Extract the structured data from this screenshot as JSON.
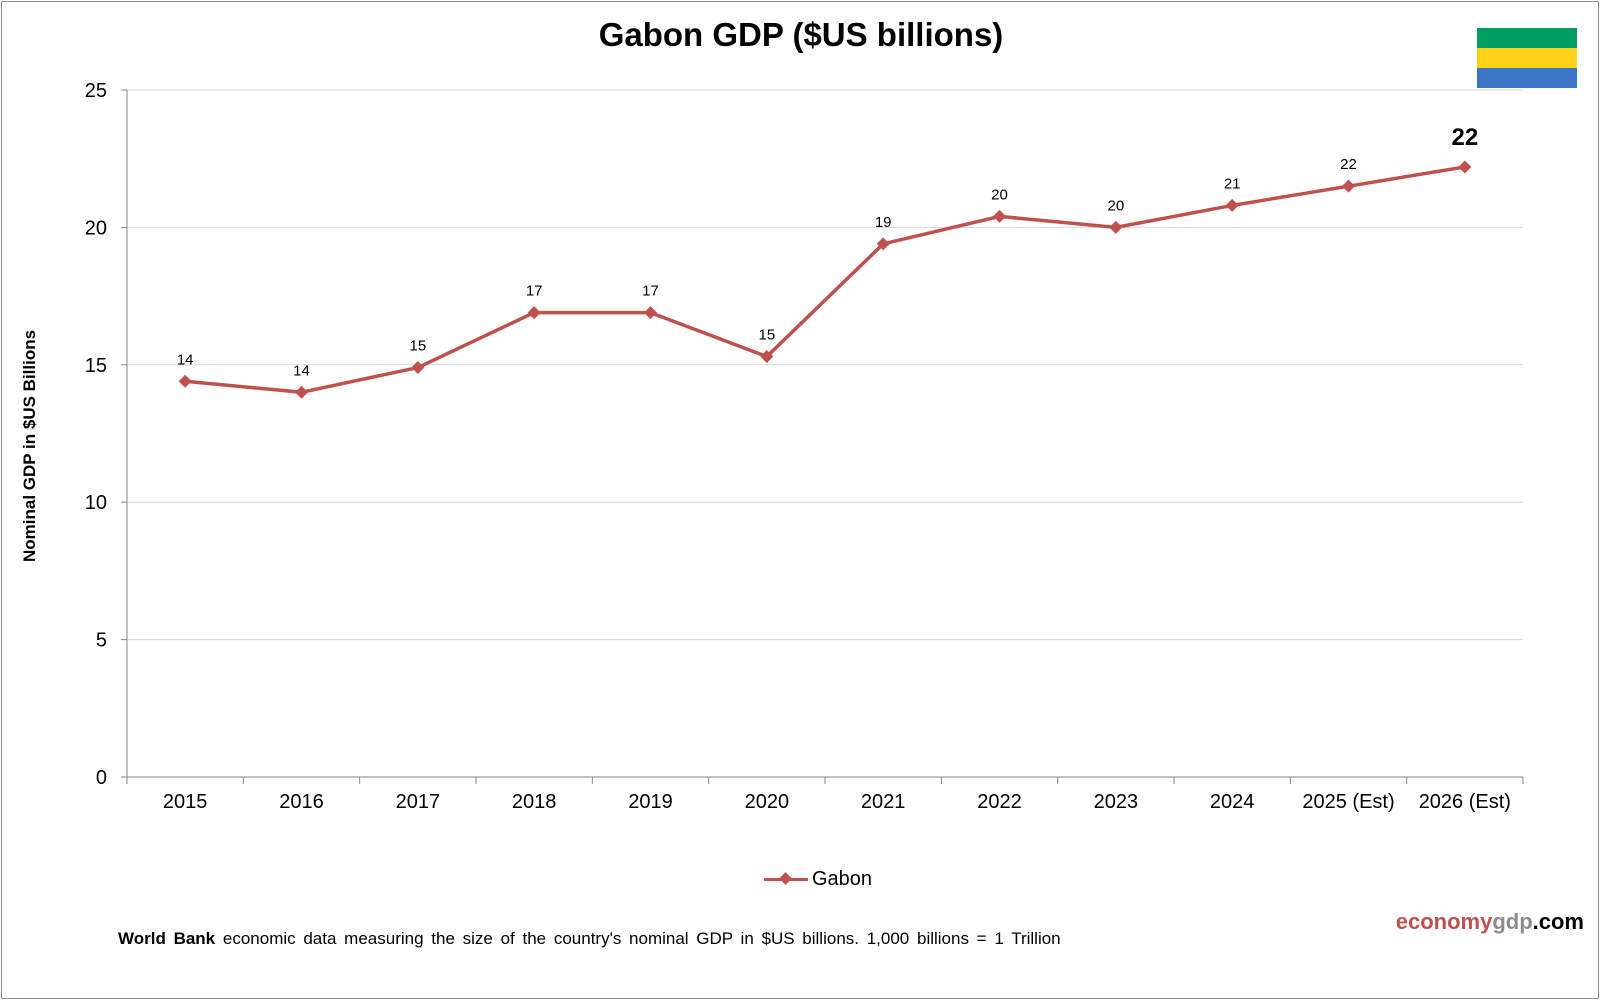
{
  "chart_data": {
    "type": "line",
    "title": "Gabon GDP ($US billions)",
    "ylabel": "Nominal GDP in $US Billions",
    "xlabel": "",
    "categories": [
      "2015",
      "2016",
      "2017",
      "2018",
      "2019",
      "2020",
      "2021",
      "2022",
      "2023",
      "2024",
      "2025 (Est)",
      "2026 (Est)"
    ],
    "series": [
      {
        "name": "Gabon",
        "values": [
          14.4,
          14.0,
          14.9,
          16.9,
          16.9,
          15.3,
          19.4,
          20.4,
          20.0,
          20.8,
          21.5,
          22.2
        ],
        "labels": [
          "14",
          "14",
          "15",
          "17",
          "17",
          "15",
          "19",
          "20",
          "20",
          "21",
          "22",
          "22"
        ],
        "color": "#c0504d"
      }
    ],
    "ylim": [
      0,
      25
    ],
    "yticks": [
      "0",
      "5",
      "10",
      "15",
      "20",
      "25"
    ],
    "grid": true,
    "legend_position": "bottom",
    "highlight_last_label": true
  },
  "flag": {
    "colors": [
      "#009e60",
      "#fcd116",
      "#3a75c4"
    ]
  },
  "footer": {
    "source_bold": "World Bank",
    "text": "economic data  measuring  the size of the country's nominal  GDP in $US billions.  1,000 billions = 1 Trillion"
  },
  "brand": {
    "part1": "economy",
    "part2": "gdp",
    "part3": ".com"
  }
}
